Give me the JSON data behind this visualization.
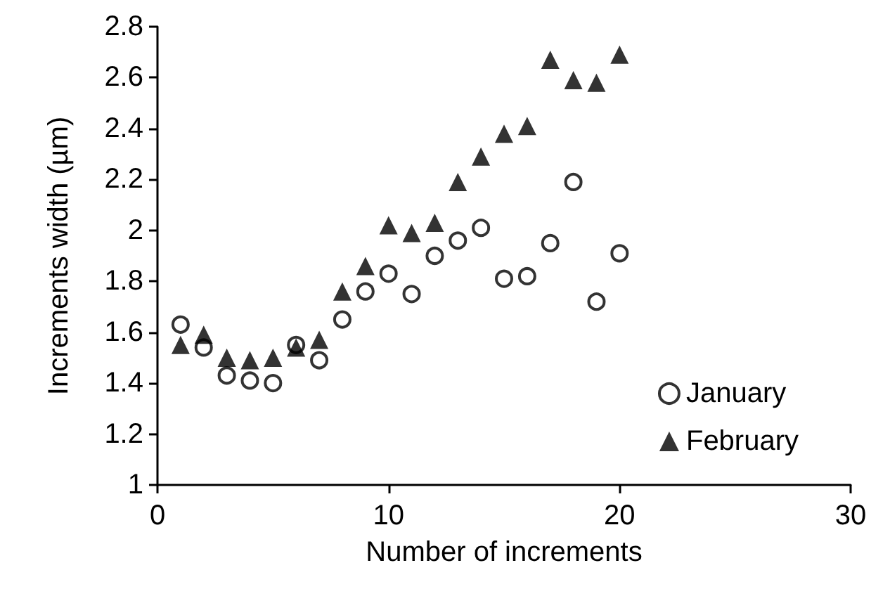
{
  "chart_data": {
    "type": "scatter",
    "xlabel": "Number of increments",
    "ylabel": "Increments width (µm)",
    "x": [
      1,
      2,
      3,
      4,
      5,
      6,
      7,
      8,
      9,
      10,
      11,
      12,
      13,
      14,
      15,
      16,
      17,
      18,
      19,
      20
    ],
    "series": [
      {
        "name": "January",
        "color": "#000000",
        "marker": "circle",
        "values": [
          1.63,
          1.54,
          1.43,
          1.41,
          1.4,
          1.55,
          1.49,
          1.65,
          1.76,
          1.83,
          1.75,
          1.9,
          1.96,
          2.01,
          1.81,
          1.82,
          1.95,
          2.19,
          1.72,
          1.91
        ]
      },
      {
        "name": "February",
        "color": "#000000",
        "marker": "triangle",
        "values": [
          1.55,
          1.59,
          1.5,
          1.49,
          1.5,
          1.54,
          1.57,
          1.76,
          1.86,
          2.02,
          1.99,
          2.03,
          2.19,
          2.29,
          2.38,
          2.41,
          2.67,
          2.59,
          2.58,
          2.69
        ]
      }
    ],
    "xlim": [
      0,
      30
    ],
    "xticks": [
      0,
      10,
      20,
      30
    ],
    "ylim": [
      1,
      2.8
    ],
    "yticks": [
      1,
      1.2,
      1.4,
      1.6,
      1.8,
      2,
      2.2,
      2.4,
      2.6,
      2.8
    ],
    "grid": false,
    "legend": "bottom right"
  }
}
